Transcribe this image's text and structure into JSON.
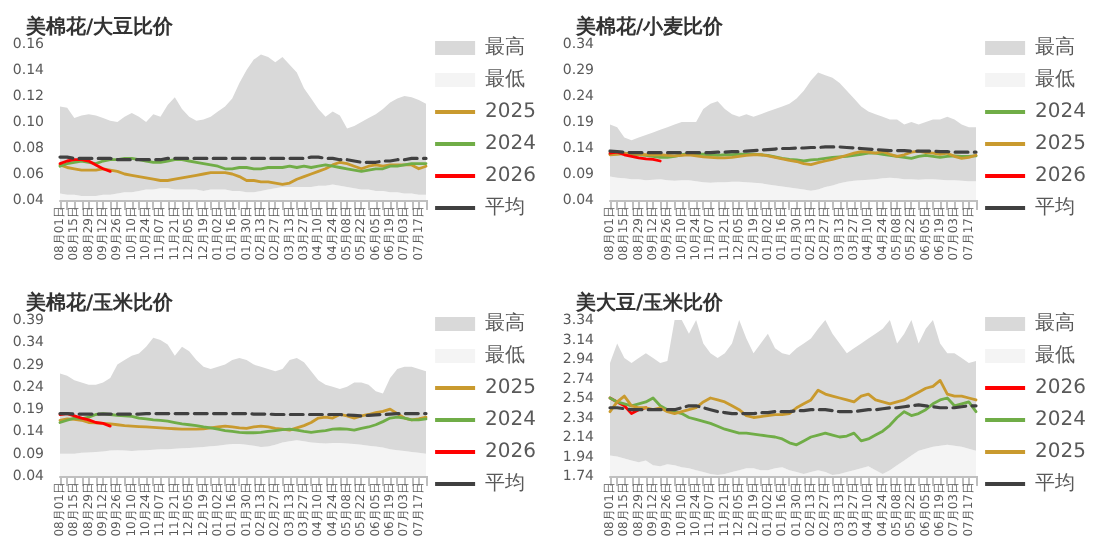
{
  "chart_data": [
    {
      "type": "line",
      "title": "美棉花/大豆比价",
      "legend": "right",
      "ylim": [
        0.04,
        0.16
      ],
      "yticks": [
        0.04,
        0.06,
        0.08,
        {
          "value": 0.1,
          "label": "0.10"
        },
        0.12,
        0.14,
        0.16
      ],
      "categories": [
        "08月01日",
        null,
        "08月15日",
        null,
        "08月29日",
        null,
        "09月12日",
        null,
        "09月26日",
        null,
        "10月10日",
        null,
        "10月24日",
        null,
        "11月07日",
        null,
        "11月21日",
        null,
        "12月05日",
        null,
        "12月19日",
        null,
        "01月02日",
        null,
        "01月16日",
        null,
        "01月30日",
        null,
        "02月13日",
        null,
        "02月27日",
        null,
        "03月13日",
        null,
        "03月27日",
        null,
        "04月10日",
        null,
        "04月24日",
        null,
        "05月08日",
        null,
        "05月22日",
        null,
        "06月05日",
        null,
        "06月19日",
        null,
        "07月03日",
        null,
        "07月17日",
        null
      ],
      "series": [
        {
          "name": "最高",
          "type": "area",
          "color": "#d9d9d9",
          "values": [
            0.112,
            0.111,
            0.103,
            0.105,
            0.106,
            0.105,
            0.103,
            0.101,
            0.1,
            0.104,
            0.107,
            0.104,
            0.1,
            0.106,
            0.104,
            0.113,
            0.119,
            0.11,
            0.104,
            0.101,
            0.102,
            0.104,
            0.108,
            0.112,
            0.118,
            0.13,
            0.14,
            0.148,
            0.152,
            0.15,
            0.146,
            0.15,
            0.144,
            0.138,
            0.126,
            0.118,
            0.11,
            0.104,
            0.108,
            0.105,
            0.095,
            0.097,
            0.1,
            0.103,
            0.106,
            0.11,
            0.115,
            0.118,
            0.12,
            0.119,
            0.117,
            0.114
          ]
        },
        {
          "name": "最低",
          "type": "area",
          "color": "#f4f4f4",
          "values": [
            0.045,
            0.044,
            0.044,
            0.043,
            0.043,
            0.043,
            0.044,
            0.044,
            0.045,
            0.046,
            0.046,
            0.047,
            0.048,
            0.048,
            0.049,
            0.049,
            0.048,
            0.048,
            0.048,
            0.048,
            0.047,
            0.048,
            0.048,
            0.048,
            0.047,
            0.047,
            0.046,
            0.046,
            0.047,
            0.048,
            0.049,
            0.05,
            0.05,
            0.05,
            0.05,
            0.05,
            0.051,
            0.051,
            0.052,
            0.051,
            0.05,
            0.049,
            0.048,
            0.048,
            0.047,
            0.047,
            0.046,
            0.046,
            0.045,
            0.045,
            0.044,
            0.044
          ]
        },
        {
          "name": "2025",
          "color": "#c99a2e",
          "values": [
            0.067,
            0.065,
            0.064,
            0.063,
            0.063,
            0.063,
            0.064,
            0.063,
            0.062,
            0.06,
            0.059,
            0.058,
            0.057,
            0.056,
            0.055,
            0.055,
            0.056,
            0.057,
            0.058,
            0.059,
            0.06,
            0.061,
            0.061,
            0.061,
            0.06,
            0.058,
            0.055,
            0.055,
            0.054,
            0.054,
            0.053,
            0.052,
            0.053,
            0.056,
            0.058,
            0.06,
            0.062,
            0.064,
            0.067,
            0.069,
            0.068,
            0.066,
            0.064,
            0.066,
            0.067,
            0.066,
            0.067,
            0.067,
            0.067,
            0.067,
            0.064,
            0.066
          ]
        },
        {
          "name": "2024",
          "color": "#70ad47",
          "values": [
            0.066,
            0.068,
            0.069,
            0.07,
            0.069,
            0.068,
            0.07,
            0.071,
            0.071,
            0.072,
            0.072,
            0.071,
            0.07,
            0.069,
            0.069,
            0.07,
            0.071,
            0.071,
            0.07,
            0.069,
            0.068,
            0.067,
            0.066,
            0.064,
            0.064,
            0.065,
            0.065,
            0.064,
            0.064,
            0.065,
            0.065,
            0.065,
            0.066,
            0.065,
            0.066,
            0.065,
            0.066,
            0.067,
            0.066,
            0.065,
            0.064,
            0.063,
            0.062,
            0.063,
            0.064,
            0.064,
            0.066,
            0.066,
            0.067,
            0.068,
            0.068,
            0.068
          ]
        },
        {
          "name": "2026",
          "color": "#ff0000",
          "values": [
            0.068,
            0.07,
            0.071,
            0.071,
            0.07,
            0.067,
            0.064,
            0.062,
            null,
            null,
            null,
            null,
            null,
            null,
            null,
            null,
            null,
            null,
            null,
            null,
            null,
            null,
            null,
            null,
            null,
            null,
            null,
            null,
            null,
            null,
            null,
            null,
            null,
            null,
            null,
            null,
            null,
            null,
            null,
            null,
            null,
            null,
            null,
            null,
            null,
            null,
            null,
            null,
            null,
            null,
            null,
            null
          ]
        },
        {
          "name": "平均",
          "color": "#404040",
          "line_style": "dashed",
          "values": [
            0.073,
            0.073,
            0.072,
            0.072,
            0.072,
            0.072,
            0.072,
            0.072,
            0.071,
            0.071,
            0.071,
            0.071,
            0.071,
            0.071,
            0.071,
            0.072,
            0.072,
            0.072,
            0.072,
            0.072,
            0.072,
            0.072,
            0.072,
            0.072,
            0.072,
            0.072,
            0.072,
            0.072,
            0.072,
            0.072,
            0.072,
            0.072,
            0.072,
            0.072,
            0.072,
            0.073,
            0.073,
            0.072,
            0.072,
            0.071,
            0.071,
            0.07,
            0.069,
            0.069,
            0.069,
            0.07,
            0.07,
            0.071,
            0.071,
            0.072,
            0.072,
            0.072
          ]
        }
      ]
    },
    {
      "type": "line",
      "title": "美棉花/小麦比价",
      "legend": "right",
      "ylim": [
        0.04,
        0.34
      ],
      "yticks": [
        0.04,
        0.09,
        0.14,
        0.19,
        0.24,
        0.29,
        0.34
      ],
      "categories": [
        "08月01日",
        null,
        "08月15日",
        null,
        "08月29日",
        null,
        "09月12日",
        null,
        "09月26日",
        null,
        "10月10日",
        null,
        "10月24日",
        null,
        "11月07日",
        null,
        "11月21日",
        null,
        "12月05日",
        null,
        "12月19日",
        null,
        "01月02日",
        null,
        "01月16日",
        null,
        "01月30日",
        null,
        "02月13日",
        null,
        "02月27日",
        null,
        "03月13日",
        null,
        "03月27日",
        null,
        "04月10日",
        null,
        "04月24日",
        null,
        "05月08日",
        null,
        "05月22日",
        null,
        "06月05日",
        null,
        "06月19日",
        null,
        "07月03日",
        null,
        "07月17日",
        null
      ],
      "series": [
        {
          "name": "最高",
          "type": "area",
          "color": "#d9d9d9",
          "values": [
            0.185,
            0.18,
            0.16,
            0.155,
            0.16,
            0.165,
            0.17,
            0.175,
            0.18,
            0.185,
            0.19,
            0.19,
            0.19,
            0.215,
            0.225,
            0.23,
            0.215,
            0.205,
            0.2,
            0.205,
            0.2,
            0.205,
            0.21,
            0.215,
            0.22,
            0.225,
            0.235,
            0.25,
            0.27,
            0.285,
            0.28,
            0.275,
            0.265,
            0.25,
            0.235,
            0.22,
            0.21,
            0.205,
            0.2,
            0.195,
            0.195,
            0.185,
            0.19,
            0.185,
            0.19,
            0.195,
            0.195,
            0.2,
            0.195,
            0.185,
            0.18,
            0.18
          ]
        },
        {
          "name": "最低",
          "type": "area",
          "color": "#f4f4f4",
          "values": [
            0.085,
            0.083,
            0.082,
            0.08,
            0.08,
            0.078,
            0.079,
            0.08,
            0.078,
            0.077,
            0.078,
            0.078,
            0.076,
            0.074,
            0.073,
            0.074,
            0.074,
            0.075,
            0.075,
            0.074,
            0.073,
            0.072,
            0.07,
            0.068,
            0.066,
            0.064,
            0.062,
            0.06,
            0.058,
            0.06,
            0.065,
            0.068,
            0.072,
            0.075,
            0.077,
            0.078,
            0.079,
            0.08,
            0.082,
            0.083,
            0.082,
            0.08,
            0.08,
            0.079,
            0.08,
            0.08,
            0.079,
            0.078,
            0.078,
            0.077,
            0.076,
            0.076
          ]
        },
        {
          "name": "2024",
          "color": "#70ad47",
          "values": [
            0.128,
            0.131,
            0.13,
            0.128,
            0.127,
            0.126,
            0.124,
            0.122,
            0.122,
            0.124,
            0.127,
            0.129,
            0.128,
            0.128,
            0.127,
            0.126,
            0.127,
            0.127,
            0.128,
            0.128,
            0.128,
            0.127,
            0.126,
            0.123,
            0.12,
            0.118,
            0.117,
            0.115,
            0.117,
            0.118,
            0.12,
            0.122,
            0.123,
            0.124,
            0.126,
            0.128,
            0.13,
            0.13,
            0.128,
            0.126,
            0.124,
            0.122,
            0.12,
            0.124,
            0.126,
            0.124,
            0.122,
            0.124,
            0.125,
            0.124,
            0.124,
            0.125
          ]
        },
        {
          "name": "2025",
          "color": "#c99a2e",
          "values": [
            0.127,
            0.128,
            0.129,
            0.13,
            0.128,
            0.127,
            0.127,
            0.127,
            0.126,
            0.125,
            0.126,
            0.127,
            0.125,
            0.123,
            0.122,
            0.121,
            0.121,
            0.122,
            0.124,
            0.126,
            0.127,
            0.127,
            0.125,
            0.122,
            0.119,
            0.116,
            0.114,
            0.11,
            0.108,
            0.112,
            0.115,
            0.118,
            0.122,
            0.126,
            0.13,
            0.133,
            0.132,
            0.13,
            0.133,
            0.128,
            0.124,
            0.127,
            0.132,
            0.134,
            0.131,
            0.13,
            0.128,
            0.13,
            0.124,
            0.12,
            0.122,
            0.126
          ]
        },
        {
          "name": "2026",
          "color": "#ff0000",
          "values": [
            0.13,
            0.132,
            0.127,
            0.124,
            0.121,
            0.119,
            0.118,
            0.115,
            null,
            null,
            null,
            null,
            null,
            null,
            null,
            null,
            null,
            null,
            null,
            null,
            null,
            null,
            null,
            null,
            null,
            null,
            null,
            null,
            null,
            null,
            null,
            null,
            null,
            null,
            null,
            null,
            null,
            null,
            null,
            null,
            null,
            null,
            null,
            null,
            null,
            null,
            null,
            null,
            null,
            null,
            null,
            null
          ]
        },
        {
          "name": "平均",
          "color": "#404040",
          "line_style": "dashed",
          "values": [
            0.134,
            0.133,
            0.132,
            0.131,
            0.131,
            0.131,
            0.131,
            0.131,
            0.131,
            0.131,
            0.131,
            0.131,
            0.131,
            0.131,
            0.131,
            0.132,
            0.132,
            0.133,
            0.133,
            0.134,
            0.135,
            0.136,
            0.137,
            0.138,
            0.139,
            0.139,
            0.14,
            0.14,
            0.141,
            0.141,
            0.142,
            0.142,
            0.142,
            0.141,
            0.14,
            0.139,
            0.138,
            0.137,
            0.136,
            0.135,
            0.135,
            0.135,
            0.134,
            0.134,
            0.134,
            0.134,
            0.133,
            0.133,
            0.132,
            0.132,
            0.132,
            0.132
          ]
        }
      ]
    },
    {
      "type": "line",
      "title": "美棉花/玉米比价",
      "legend": "right",
      "ylim": [
        0.04,
        0.39
      ],
      "yticks": [
        0.04,
        0.09,
        0.14,
        0.19,
        0.24,
        0.29,
        0.34,
        0.39
      ],
      "categories": [
        "08月01日",
        null,
        "08月15日",
        null,
        "08月29日",
        null,
        "09月12日",
        null,
        "09月26日",
        null,
        "10月10日",
        null,
        "10月24日",
        null,
        "11月07日",
        null,
        "11月21日",
        null,
        "12月05日",
        null,
        "12月19日",
        null,
        "01月02日",
        null,
        "01月16日",
        null,
        "01月30日",
        null,
        "02月13日",
        null,
        "02月27日",
        null,
        "03月13日",
        null,
        "03月27日",
        null,
        "04月10日",
        null,
        "04月24日",
        null,
        "05月08日",
        null,
        "05月22日",
        null,
        "06月05日",
        null,
        "06月19日",
        null,
        "07月03日",
        null,
        "07月17日",
        null
      ],
      "series": [
        {
          "name": "最高",
          "type": "area",
          "color": "#d9d9d9",
          "values": [
            0.27,
            0.265,
            0.255,
            0.25,
            0.245,
            0.245,
            0.25,
            0.26,
            0.29,
            0.3,
            0.31,
            0.315,
            0.33,
            0.35,
            0.345,
            0.335,
            0.31,
            0.33,
            0.32,
            0.3,
            0.285,
            0.28,
            0.285,
            0.29,
            0.3,
            0.305,
            0.3,
            0.29,
            0.285,
            0.28,
            0.275,
            0.28,
            0.3,
            0.305,
            0.295,
            0.275,
            0.255,
            0.245,
            0.24,
            0.235,
            0.24,
            0.25,
            0.25,
            0.245,
            0.23,
            0.225,
            0.26,
            0.28,
            0.285,
            0.285,
            0.28,
            0.275
          ]
        },
        {
          "name": "最低",
          "type": "area",
          "color": "#f4f4f4",
          "values": [
            0.09,
            0.09,
            0.09,
            0.092,
            0.093,
            0.094,
            0.095,
            0.097,
            0.098,
            0.097,
            0.096,
            0.097,
            0.098,
            0.099,
            0.1,
            0.1,
            0.101,
            0.102,
            0.103,
            0.104,
            0.105,
            0.107,
            0.108,
            0.11,
            0.112,
            0.112,
            0.11,
            0.108,
            0.105,
            0.106,
            0.11,
            0.115,
            0.118,
            0.12,
            0.118,
            0.115,
            0.114,
            0.113,
            0.114,
            0.114,
            0.113,
            0.112,
            0.11,
            0.108,
            0.106,
            0.104,
            0.1,
            0.098,
            0.096,
            0.094,
            0.092,
            0.09
          ]
        },
        {
          "name": "2025",
          "color": "#c99a2e",
          "values": [
            0.165,
            0.168,
            0.167,
            0.165,
            0.16,
            0.159,
            0.158,
            0.157,
            0.155,
            0.153,
            0.152,
            0.151,
            0.15,
            0.149,
            0.148,
            0.147,
            0.146,
            0.145,
            0.145,
            0.145,
            0.146,
            0.148,
            0.15,
            0.152,
            0.15,
            0.148,
            0.147,
            0.15,
            0.152,
            0.15,
            0.147,
            0.145,
            0.143,
            0.148,
            0.153,
            0.16,
            0.17,
            0.172,
            0.17,
            0.178,
            0.175,
            0.17,
            0.175,
            0.178,
            0.182,
            0.185,
            0.19,
            0.18,
            0.17,
            0.166,
            0.168,
            0.172
          ]
        },
        {
          "name": "2024",
          "color": "#70ad47",
          "values": [
            0.16,
            0.165,
            0.17,
            0.168,
            0.172,
            0.178,
            0.18,
            0.178,
            0.176,
            0.175,
            0.174,
            0.17,
            0.168,
            0.166,
            0.165,
            0.163,
            0.16,
            0.157,
            0.155,
            0.153,
            0.15,
            0.148,
            0.145,
            0.142,
            0.14,
            0.138,
            0.137,
            0.137,
            0.138,
            0.14,
            0.142,
            0.144,
            0.145,
            0.143,
            0.14,
            0.138,
            0.14,
            0.142,
            0.145,
            0.146,
            0.145,
            0.143,
            0.147,
            0.15,
            0.155,
            0.162,
            0.17,
            0.172,
            0.17,
            0.166,
            0.166,
            0.168
          ]
        },
        {
          "name": "2026",
          "color": "#ff0000",
          "values": [
            0.178,
            0.18,
            0.175,
            0.17,
            0.166,
            0.16,
            0.158,
            0.152,
            null,
            null,
            null,
            null,
            null,
            null,
            null,
            null,
            null,
            null,
            null,
            null,
            null,
            null,
            null,
            null,
            null,
            null,
            null,
            null,
            null,
            null,
            null,
            null,
            null,
            null,
            null,
            null,
            null,
            null,
            null,
            null,
            null,
            null,
            null,
            null,
            null,
            null,
            null,
            null,
            null,
            null,
            null,
            null
          ]
        },
        {
          "name": "平均",
          "color": "#404040",
          "line_style": "dashed",
          "values": [
            0.18,
            0.18,
            0.179,
            0.179,
            0.179,
            0.179,
            0.179,
            0.179,
            0.179,
            0.179,
            0.179,
            0.179,
            0.18,
            0.18,
            0.18,
            0.18,
            0.18,
            0.18,
            0.18,
            0.18,
            0.18,
            0.18,
            0.18,
            0.18,
            0.18,
            0.18,
            0.18,
            0.179,
            0.179,
            0.179,
            0.178,
            0.178,
            0.178,
            0.178,
            0.178,
            0.178,
            0.178,
            0.178,
            0.178,
            0.178,
            0.177,
            0.176,
            0.175,
            0.176,
            0.177,
            0.178,
            0.179,
            0.18,
            0.18,
            0.18,
            0.18,
            0.18
          ]
        }
      ]
    },
    {
      "type": "line",
      "title": "美大豆/玉米比价",
      "legend": "right",
      "ylim": [
        1.74,
        3.34
      ],
      "yticks": [
        1.74,
        1.94,
        2.14,
        2.34,
        2.54,
        2.74,
        2.94,
        3.14,
        3.34
      ],
      "categories": [
        "08月01日",
        null,
        "08月15日",
        null,
        "08月29日",
        null,
        "09月12日",
        null,
        "09月26日",
        null,
        "10月10日",
        null,
        "10月24日",
        null,
        "11月07日",
        null,
        "11月21日",
        null,
        "12月05日",
        null,
        "12月19日",
        null,
        "01月02日",
        null,
        "01月16日",
        null,
        "01月30日",
        null,
        "02月13日",
        null,
        "02月27日",
        null,
        "03月13日",
        null,
        "03月27日",
        null,
        "04月10日",
        null,
        "04月24日",
        null,
        "05月08日",
        null,
        "05月22日",
        null,
        "06月05日",
        null,
        "06月19日",
        null,
        "07月03日",
        null,
        "07月17日",
        null
      ],
      "series": [
        {
          "name": "最高",
          "type": "area",
          "color": "#d9d9d9",
          "values": [
            2.9,
            3.1,
            2.95,
            2.9,
            2.95,
            3.0,
            2.95,
            2.9,
            2.92,
            3.34,
            3.34,
            3.2,
            3.34,
            3.1,
            3.0,
            2.95,
            3.0,
            3.1,
            3.34,
            3.15,
            3.0,
            3.1,
            3.2,
            3.05,
            3.0,
            2.98,
            3.05,
            3.1,
            3.15,
            3.25,
            3.34,
            3.2,
            3.1,
            3.0,
            3.05,
            3.1,
            3.15,
            3.2,
            3.25,
            3.34,
            3.1,
            3.2,
            3.34,
            3.1,
            3.25,
            3.34,
            3.1,
            3.0,
            3.0,
            2.95,
            2.9,
            2.92
          ]
        },
        {
          "name": "最低",
          "type": "area",
          "color": "#f4f4f4",
          "values": [
            1.95,
            1.94,
            1.92,
            1.9,
            1.88,
            1.9,
            1.85,
            1.84,
            1.86,
            1.85,
            1.83,
            1.82,
            1.8,
            1.78,
            1.76,
            1.75,
            1.76,
            1.78,
            1.8,
            1.82,
            1.82,
            1.8,
            1.8,
            1.82,
            1.83,
            1.8,
            1.78,
            1.76,
            1.78,
            1.8,
            1.78,
            1.75,
            1.76,
            1.78,
            1.8,
            1.82,
            1.84,
            1.8,
            1.76,
            1.8,
            1.85,
            1.9,
            1.95,
            2.0,
            2.02,
            2.04,
            2.05,
            2.06,
            2.05,
            2.04,
            2.02,
            2.0
          ]
        },
        {
          "name": "2026",
          "color": "#ff0000",
          "values": [
            2.54,
            2.5,
            2.46,
            2.38,
            2.42,
            2.44,
            null,
            null,
            null,
            null,
            null,
            null,
            null,
            null,
            null,
            null,
            null,
            null,
            null,
            null,
            null,
            null,
            null,
            null,
            null,
            null,
            null,
            null,
            null,
            null,
            null,
            null,
            null,
            null,
            null,
            null,
            null,
            null,
            null,
            null,
            null,
            null,
            null,
            null,
            null,
            null,
            null,
            null,
            null,
            null,
            null,
            null
          ]
        },
        {
          "name": "2024",
          "color": "#70ad47",
          "values": [
            2.54,
            2.5,
            2.48,
            2.46,
            2.48,
            2.5,
            2.54,
            2.46,
            2.42,
            2.4,
            2.38,
            2.34,
            2.32,
            2.3,
            2.28,
            2.25,
            2.22,
            2.2,
            2.18,
            2.18,
            2.17,
            2.16,
            2.15,
            2.14,
            2.12,
            2.08,
            2.06,
            2.1,
            2.14,
            2.16,
            2.18,
            2.16,
            2.14,
            2.15,
            2.18,
            2.1,
            2.12,
            2.16,
            2.2,
            2.26,
            2.34,
            2.4,
            2.36,
            2.38,
            2.42,
            2.48,
            2.52,
            2.54,
            2.46,
            2.48,
            2.5,
            2.4
          ]
        },
        {
          "name": "2025",
          "color": "#c99a2e",
          "values": [
            2.4,
            2.5,
            2.56,
            2.46,
            2.44,
            2.44,
            2.42,
            2.44,
            2.4,
            2.38,
            2.4,
            2.42,
            2.44,
            2.5,
            2.54,
            2.52,
            2.5,
            2.46,
            2.42,
            2.36,
            2.34,
            2.35,
            2.36,
            2.37,
            2.37,
            2.38,
            2.44,
            2.48,
            2.52,
            2.62,
            2.58,
            2.56,
            2.54,
            2.52,
            2.5,
            2.56,
            2.58,
            2.52,
            2.5,
            2.48,
            2.5,
            2.52,
            2.56,
            2.6,
            2.64,
            2.66,
            2.72,
            2.58,
            2.56,
            2.56,
            2.54,
            2.52
          ]
        },
        {
          "name": "平均",
          "color": "#404040",
          "line_style": "dashed",
          "values": [
            2.44,
            2.44,
            2.43,
            2.42,
            2.42,
            2.42,
            2.42,
            2.42,
            2.42,
            2.42,
            2.44,
            2.46,
            2.46,
            2.44,
            2.42,
            2.4,
            2.39,
            2.38,
            2.38,
            2.38,
            2.38,
            2.39,
            2.39,
            2.4,
            2.4,
            2.4,
            2.41,
            2.41,
            2.42,
            2.42,
            2.42,
            2.41,
            2.4,
            2.4,
            2.4,
            2.41,
            2.42,
            2.42,
            2.43,
            2.44,
            2.44,
            2.45,
            2.46,
            2.47,
            2.46,
            2.45,
            2.44,
            2.44,
            2.44,
            2.45,
            2.46,
            2.46
          ]
        }
      ]
    }
  ]
}
